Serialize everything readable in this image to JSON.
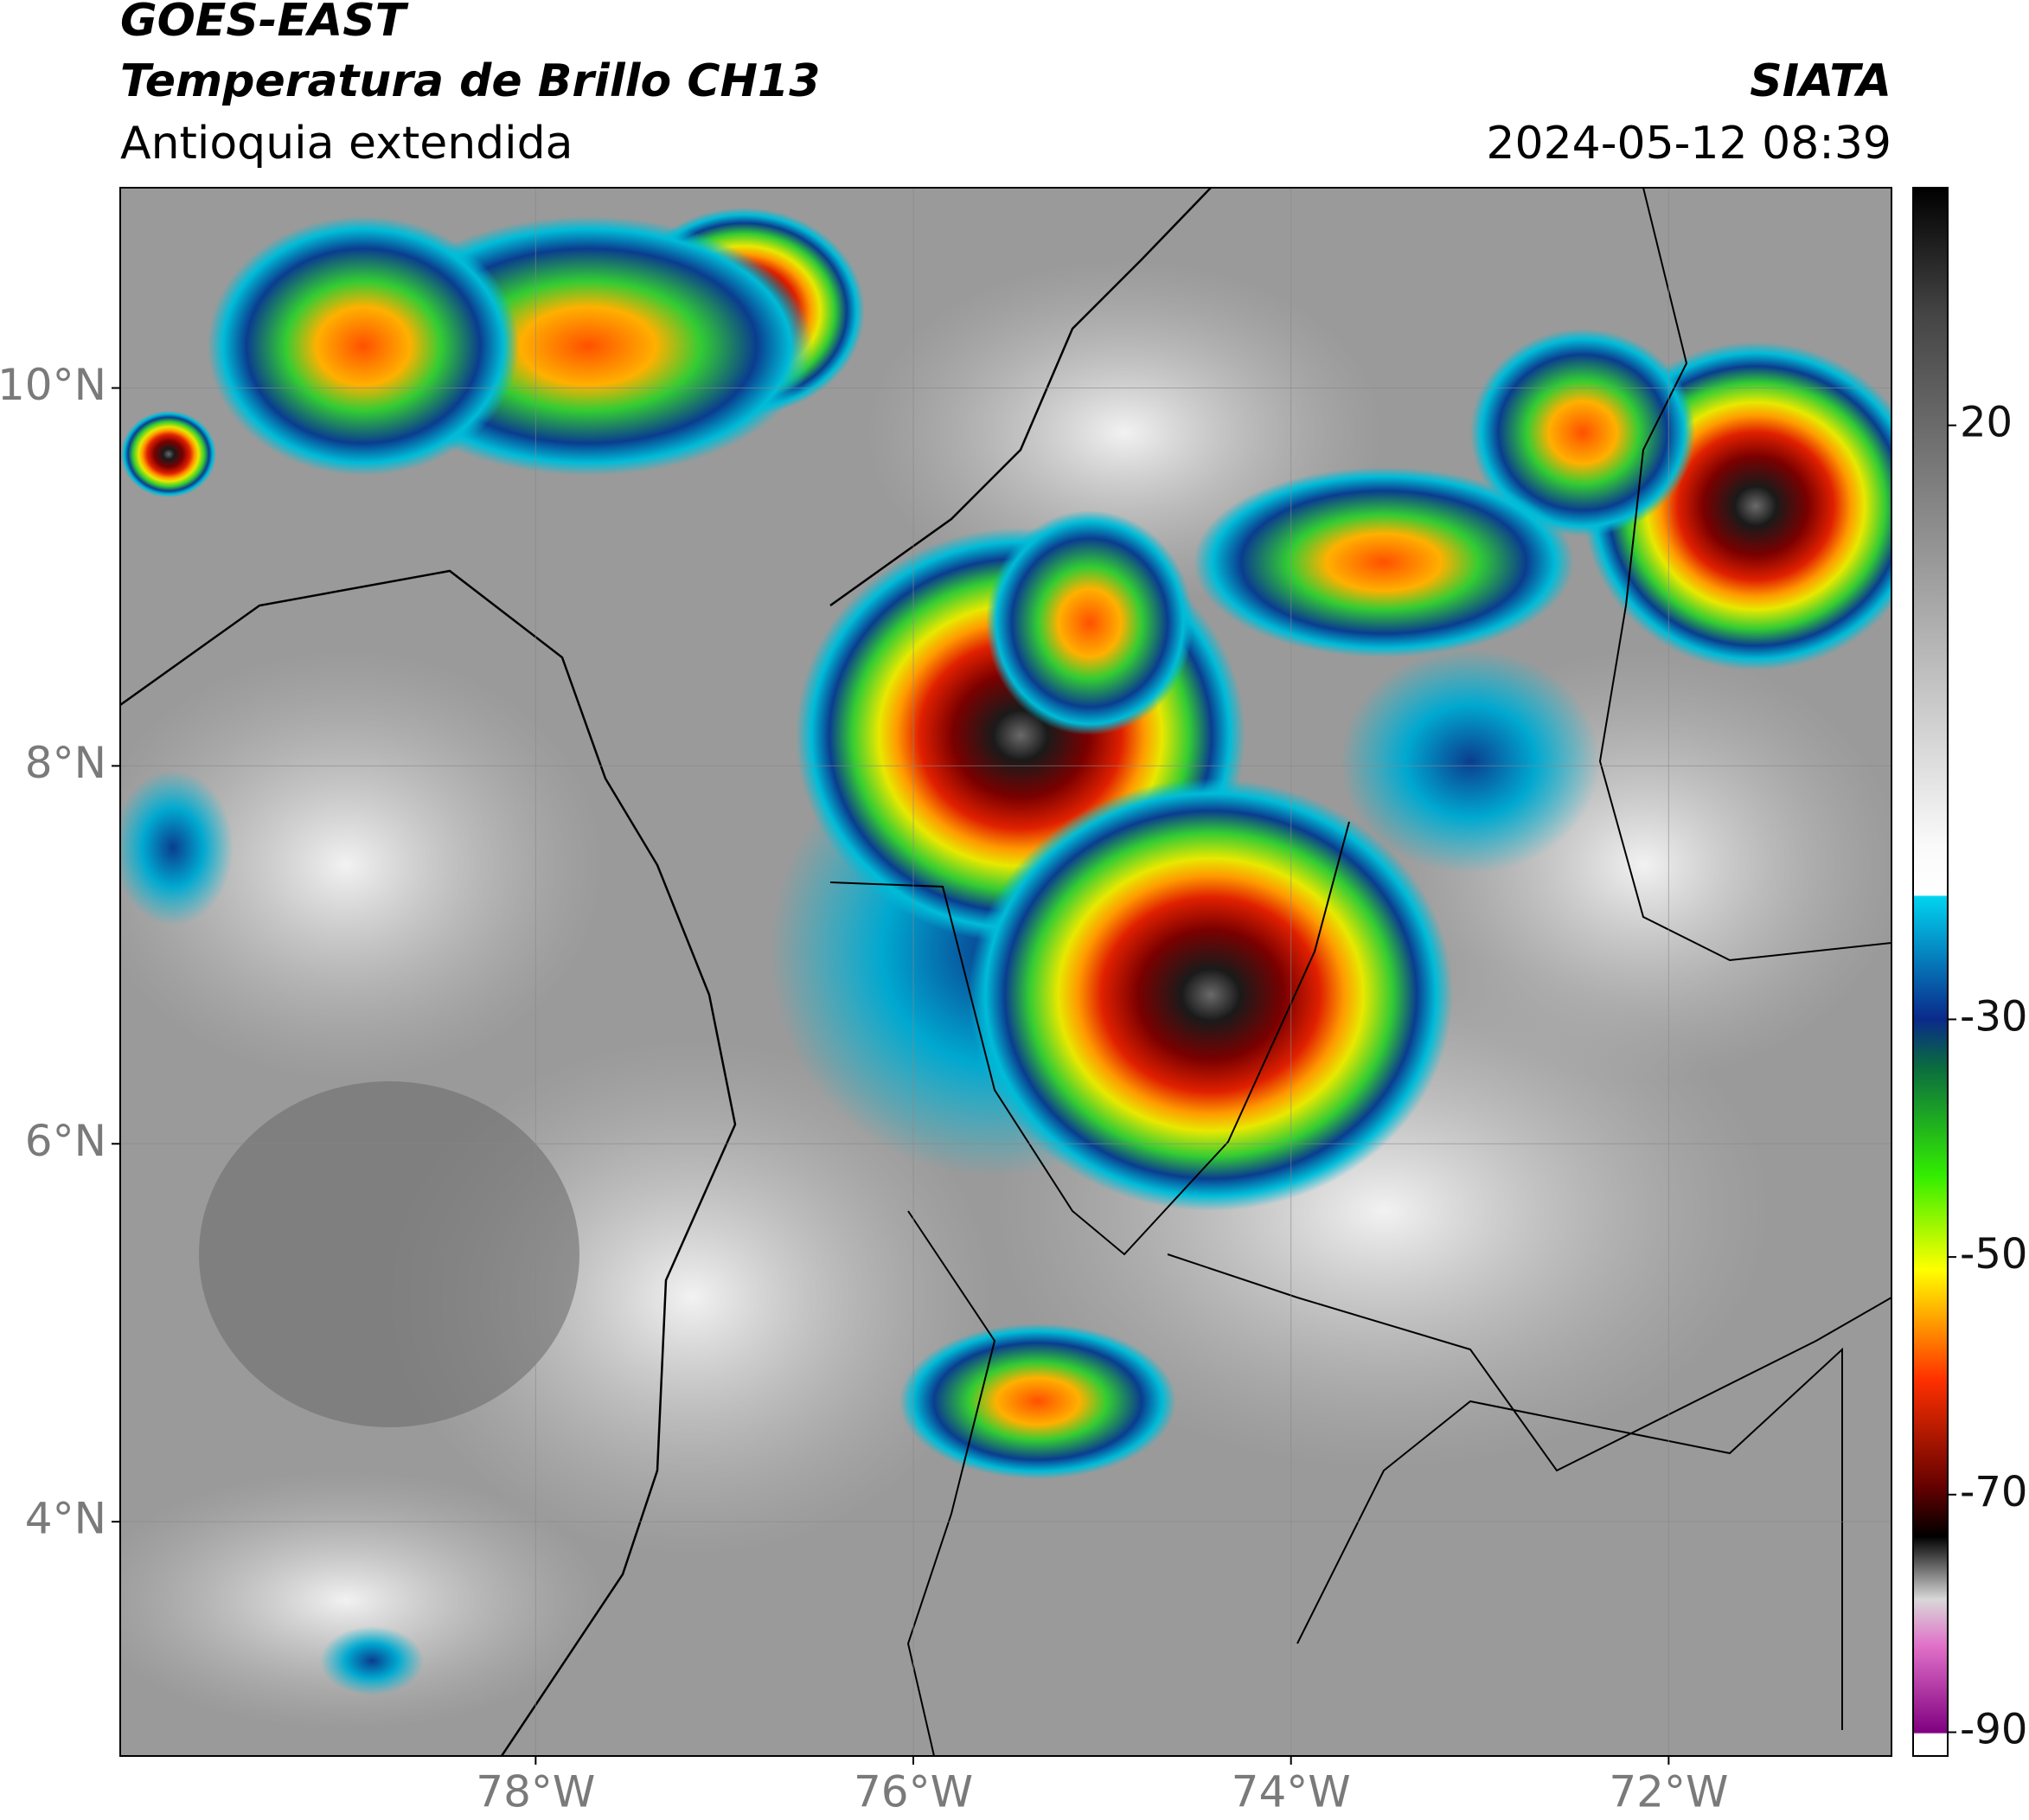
{
  "header": {
    "title": "GOES-EAST",
    "subtitle": "Temperatura de Brillo CH13",
    "region": "Antioquia extendida",
    "source": "SIATA",
    "datetime": "2024-05-12 08:39"
  },
  "chart_data": {
    "type": "map",
    "xlim": [
      -80.2,
      -70.82
    ],
    "ylim": [
      2.76,
      11.06
    ],
    "xticks": [
      {
        "value": -78,
        "label": "78°W"
      },
      {
        "value": -76,
        "label": "76°W"
      },
      {
        "value": -74,
        "label": "74°W"
      },
      {
        "value": -72,
        "label": "72°W"
      }
    ],
    "yticks": [
      {
        "value": 4,
        "label": "4°N"
      },
      {
        "value": 6,
        "label": "6°N"
      },
      {
        "value": 8,
        "label": "8°N"
      },
      {
        "value": 10,
        "label": "10°N"
      }
    ],
    "grid": true,
    "colorbar": {
      "lim": [
        -92,
        40
      ],
      "ticks": [
        20,
        -30,
        -50,
        -70,
        -90
      ]
    }
  }
}
